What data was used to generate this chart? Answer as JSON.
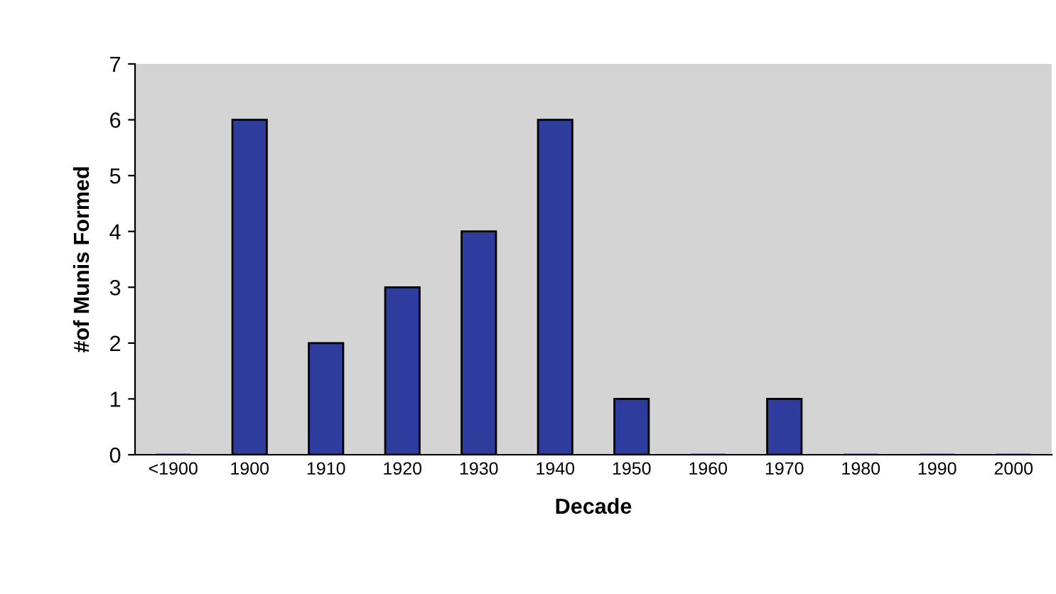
{
  "chart_data": {
    "type": "bar",
    "xlabel": "Decade",
    "ylabel": "#of Munis Formed",
    "categories": [
      "<1900",
      "1900",
      "1910",
      "1920",
      "1930",
      "1940",
      "1950",
      "1960",
      "1970",
      "1980",
      "1990",
      "2000"
    ],
    "values": [
      0,
      6,
      2,
      3,
      4,
      6,
      1,
      0,
      1,
      0,
      0,
      0
    ],
    "color": "#2e3c9e",
    "ylim": [
      0,
      7
    ],
    "yticks": [
      0,
      1,
      2,
      3,
      4,
      5,
      6,
      7
    ],
    "grid": false,
    "legend": false
  }
}
